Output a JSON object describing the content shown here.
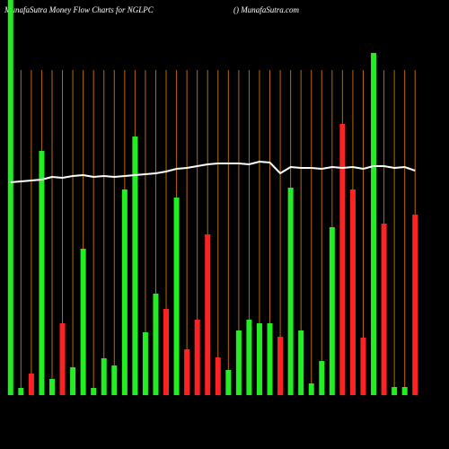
{
  "chart_data": {
    "type": "bar",
    "title": "MunafaSutra  Money Flow  Charts for NGLPC",
    "subtitle": "() MunafaSutra.com",
    "categories": [
      null,
      null,
      null,
      null,
      null,
      null,
      null,
      null,
      null,
      null,
      null,
      null,
      null,
      null,
      null,
      null,
      null,
      null,
      null,
      null,
      null,
      null,
      null,
      null,
      null,
      null,
      null,
      null,
      null,
      null,
      null,
      null,
      null,
      null,
      null,
      null,
      null,
      null,
      null,
      null
    ],
    "values": [
      440,
      8,
      24,
      272,
      18,
      80,
      31,
      163,
      8,
      41,
      33,
      229,
      288,
      70,
      113,
      96,
      220,
      51,
      84,
      179,
      42,
      28,
      72,
      84,
      80,
      80,
      65,
      231,
      72,
      13,
      38,
      187,
      302,
      229,
      64,
      381,
      191,
      9,
      9,
      201
    ],
    "colors": [
      "#22ee22",
      "#22ee22",
      "#ff2222",
      "#22ee22",
      "#22ee22",
      "#ff2222",
      "#22ee22",
      "#22ee22",
      "#22ee22",
      "#22ee22",
      "#22ee22",
      "#22ee22",
      "#22ee22",
      "#22ee22",
      "#22ee22",
      "#ff2222",
      "#22ee22",
      "#ff2222",
      "#ff2222",
      "#ff2222",
      "#ff2222",
      "#22ee22",
      "#22ee22",
      "#22ee22",
      "#22ee22",
      "#22ee22",
      "#ff2222",
      "#22ee22",
      "#22ee22",
      "#22ee22",
      "#22ee22",
      "#22ee22",
      "#ff2222",
      "#ff2222",
      "#ff2222",
      "#22ee22",
      "#ff2222",
      "#22ee22",
      "#22ee22",
      "#ff2222"
    ],
    "line": {
      "color": "#ffffff",
      "values": [
        237,
        238,
        239,
        240,
        243,
        242,
        244,
        245,
        243,
        244,
        243,
        244,
        245,
        246,
        247,
        249,
        252,
        253,
        255,
        257,
        258,
        258,
        258,
        257,
        260,
        259,
        247,
        254,
        253,
        253,
        252,
        254,
        253,
        254,
        252,
        255,
        255,
        253,
        254,
        250
      ]
    },
    "ylim": [
      0,
      440
    ],
    "grid": true,
    "grid_color": "#b86a00"
  }
}
